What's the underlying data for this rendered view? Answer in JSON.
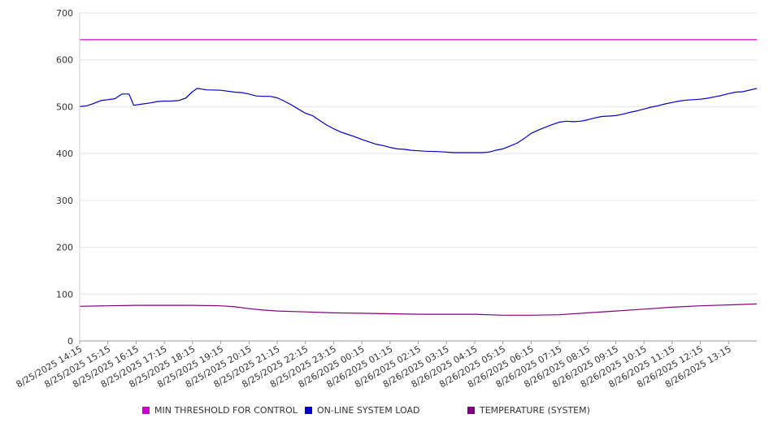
{
  "chart_data": {
    "type": "line",
    "ylim": [
      0,
      700
    ],
    "yticks": [
      0,
      100,
      200,
      300,
      400,
      500,
      600,
      700
    ],
    "grid": true,
    "legend_position": "bottom",
    "x_tick_labels": [
      "8/25/2025 14:15",
      "8/25/2025 15:15",
      "8/25/2025 16:15",
      "8/25/2025 17:15",
      "8/25/2025 18:15",
      "8/25/2025 19:15",
      "8/25/2025 20:15",
      "8/25/2025 21:15",
      "8/25/2025 22:15",
      "8/25/2025 23:15",
      "8/26/2025 00:15",
      "8/26/2025 01:15",
      "8/26/2025 02:15",
      "8/26/2025 03:15",
      "8/26/2025 04:15",
      "8/26/2025 05:15",
      "8/26/2025 06:15",
      "8/26/2025 07:15",
      "8/26/2025 08:15",
      "8/26/2025 09:15",
      "8/26/2025 10:15",
      "8/26/2025 11:15",
      "8/26/2025 12:15",
      "8/26/2025 13:15"
    ],
    "series": [
      {
        "name": "MIN THRESHOLD FOR CONTROL",
        "color": "#cc00cc",
        "points": [
          [
            "8/25/2025 14:15",
            643
          ],
          [
            "8/26/2025 14:15",
            643
          ]
        ]
      },
      {
        "name": "ON-LINE SYSTEM LOAD",
        "color": "#0000cc",
        "points": [
          [
            "8/25/2025 14:15",
            500
          ],
          [
            "8/25/2025 14:30",
            502
          ],
          [
            "8/25/2025 14:45",
            507
          ],
          [
            "8/25/2025 15:00",
            513
          ],
          [
            "8/25/2025 15:15",
            515
          ],
          [
            "8/25/2025 15:30",
            517
          ],
          [
            "8/25/2025 15:45",
            527
          ],
          [
            "8/25/2025 16:00",
            527
          ],
          [
            "8/25/2025 16:10",
            503
          ],
          [
            "8/25/2025 16:30",
            506
          ],
          [
            "8/25/2025 16:45",
            508
          ],
          [
            "8/25/2025 17:00",
            511
          ],
          [
            "8/25/2025 17:15",
            512
          ],
          [
            "8/25/2025 17:30",
            512
          ],
          [
            "8/25/2025 17:45",
            513
          ],
          [
            "8/25/2025 18:00",
            518
          ],
          [
            "8/25/2025 18:15",
            532
          ],
          [
            "8/25/2025 18:25",
            539
          ],
          [
            "8/25/2025 18:45",
            536
          ],
          [
            "8/25/2025 19:15",
            535
          ],
          [
            "8/25/2025 19:45",
            531
          ],
          [
            "8/25/2025 20:00",
            530
          ],
          [
            "8/25/2025 20:15",
            527
          ],
          [
            "8/25/2025 20:30",
            523
          ],
          [
            "8/25/2025 20:45",
            522
          ],
          [
            "8/25/2025 21:00",
            522
          ],
          [
            "8/25/2025 21:15",
            519
          ],
          [
            "8/25/2025 21:30",
            512
          ],
          [
            "8/25/2025 21:45",
            504
          ],
          [
            "8/25/2025 22:00",
            495
          ],
          [
            "8/25/2025 22:15",
            486
          ],
          [
            "8/25/2025 22:30",
            481
          ],
          [
            "8/25/2025 22:45",
            471
          ],
          [
            "8/25/2025 23:00",
            461
          ],
          [
            "8/25/2025 23:15",
            453
          ],
          [
            "8/25/2025 23:30",
            446
          ],
          [
            "8/25/2025 23:45",
            441
          ],
          [
            "8/26/2025 00:00",
            436
          ],
          [
            "8/26/2025 00:15",
            430
          ],
          [
            "8/26/2025 00:30",
            425
          ],
          [
            "8/26/2025 00:45",
            420
          ],
          [
            "8/26/2025 01:00",
            417
          ],
          [
            "8/26/2025 01:15",
            413
          ],
          [
            "8/26/2025 01:30",
            410
          ],
          [
            "8/26/2025 01:45",
            409
          ],
          [
            "8/26/2025 02:00",
            407
          ],
          [
            "8/26/2025 02:15",
            406
          ],
          [
            "8/26/2025 02:30",
            405
          ],
          [
            "8/26/2025 03:00",
            404
          ],
          [
            "8/26/2025 03:30",
            402
          ],
          [
            "8/26/2025 04:00",
            402
          ],
          [
            "8/26/2025 04:15",
            402
          ],
          [
            "8/26/2025 04:30",
            402
          ],
          [
            "8/26/2025 04:45",
            403
          ],
          [
            "8/26/2025 05:00",
            407
          ],
          [
            "8/26/2025 05:15",
            410
          ],
          [
            "8/26/2025 05:30",
            416
          ],
          [
            "8/26/2025 05:45",
            422
          ],
          [
            "8/26/2025 06:00",
            432
          ],
          [
            "8/26/2025 06:15",
            443
          ],
          [
            "8/26/2025 06:30",
            450
          ],
          [
            "8/26/2025 06:45",
            456
          ],
          [
            "8/26/2025 07:00",
            462
          ],
          [
            "8/26/2025 07:15",
            467
          ],
          [
            "8/26/2025 07:30",
            469
          ],
          [
            "8/26/2025 07:45",
            468
          ],
          [
            "8/26/2025 08:00",
            469
          ],
          [
            "8/26/2025 08:15",
            472
          ],
          [
            "8/26/2025 08:30",
            476
          ],
          [
            "8/26/2025 08:45",
            479
          ],
          [
            "8/26/2025 09:00",
            480
          ],
          [
            "8/26/2025 09:15",
            481
          ],
          [
            "8/26/2025 09:30",
            484
          ],
          [
            "8/26/2025 09:45",
            488
          ],
          [
            "8/26/2025 10:00",
            491
          ],
          [
            "8/26/2025 10:15",
            495
          ],
          [
            "8/26/2025 10:30",
            499
          ],
          [
            "8/26/2025 10:45",
            502
          ],
          [
            "8/26/2025 11:00",
            506
          ],
          [
            "8/26/2025 11:15",
            509
          ],
          [
            "8/26/2025 11:30",
            512
          ],
          [
            "8/26/2025 11:45",
            514
          ],
          [
            "8/26/2025 12:00",
            515
          ],
          [
            "8/26/2025 12:15",
            516
          ],
          [
            "8/26/2025 12:30",
            518
          ],
          [
            "8/26/2025 12:45",
            521
          ],
          [
            "8/26/2025 13:00",
            524
          ],
          [
            "8/26/2025 13:15",
            528
          ],
          [
            "8/26/2025 13:30",
            531
          ],
          [
            "8/26/2025 13:45",
            532
          ],
          [
            "8/26/2025 14:15",
            539
          ]
        ]
      },
      {
        "name": "TEMPERATURE (SYSTEM)",
        "color": "#800080",
        "points": [
          [
            "8/25/2025 14:15",
            74
          ],
          [
            "8/25/2025 15:15",
            75
          ],
          [
            "8/25/2025 16:15",
            76
          ],
          [
            "8/25/2025 17:15",
            76
          ],
          [
            "8/25/2025 18:15",
            76
          ],
          [
            "8/25/2025 19:15",
            75
          ],
          [
            "8/25/2025 19:45",
            73
          ],
          [
            "8/25/2025 20:15",
            69
          ],
          [
            "8/25/2025 20:45",
            66
          ],
          [
            "8/25/2025 21:15",
            64
          ],
          [
            "8/25/2025 22:15",
            62
          ],
          [
            "8/25/2025 23:15",
            60
          ],
          [
            "8/26/2025 00:15",
            59
          ],
          [
            "8/26/2025 01:15",
            58
          ],
          [
            "8/26/2025 02:15",
            57
          ],
          [
            "8/26/2025 03:15",
            57
          ],
          [
            "8/26/2025 04:15",
            57
          ],
          [
            "8/26/2025 05:15",
            55
          ],
          [
            "8/26/2025 06:15",
            55
          ],
          [
            "8/26/2025 07:15",
            56
          ],
          [
            "8/26/2025 08:15",
            60
          ],
          [
            "8/26/2025 09:15",
            64
          ],
          [
            "8/26/2025 10:15",
            68
          ],
          [
            "8/26/2025 11:15",
            72
          ],
          [
            "8/26/2025 12:15",
            75
          ],
          [
            "8/26/2025 13:15",
            77
          ],
          [
            "8/26/2025 14:15",
            79
          ]
        ]
      }
    ]
  }
}
